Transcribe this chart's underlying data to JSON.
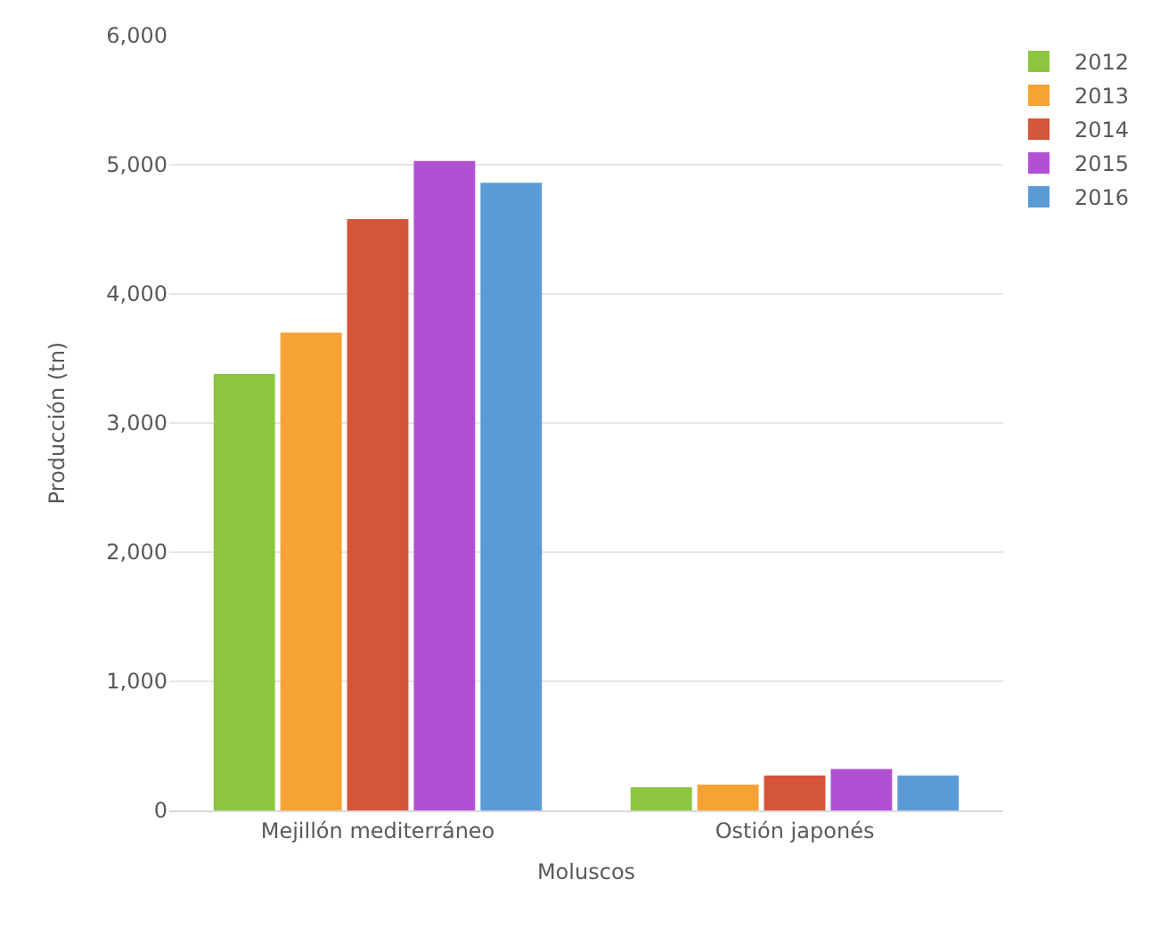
{
  "chart_data": {
    "type": "bar",
    "ylabel": "Producción (tn)",
    "xlabel": "Moluscos",
    "categories": [
      "Mejillón mediterráneo",
      "Ostión japonés"
    ],
    "series": [
      {
        "name": "2012",
        "color": "#8cc63f",
        "values": [
          3380,
          180
        ]
      },
      {
        "name": "2013",
        "color": "#f7a234",
        "values": [
          3700,
          200
        ]
      },
      {
        "name": "2014",
        "color": "#d4553a",
        "values": [
          4580,
          270
        ]
      },
      {
        "name": "2015",
        "color": "#b150d2",
        "values": [
          5030,
          320
        ]
      },
      {
        "name": "2016",
        "color": "#5b9bd5",
        "values": [
          4860,
          270
        ]
      }
    ],
    "ylim": [
      0,
      6000
    ],
    "yticks": [
      0,
      {
        "value": 1000,
        "label": "1,000"
      },
      {
        "value": 2000,
        "label": "2,000"
      },
      {
        "value": 3000,
        "label": "3,000"
      },
      {
        "value": 4000,
        "label": "4,000"
      },
      {
        "value": 5000,
        "label": "5,000"
      },
      {
        "value": 6000,
        "label": "6,000"
      }
    ],
    "grid": "y",
    "legend": "top right"
  }
}
